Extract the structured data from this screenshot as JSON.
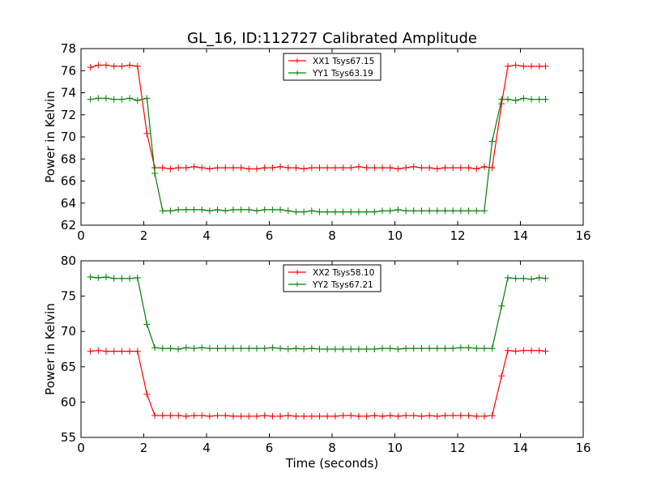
{
  "title": "GL_16, ID:112727 Calibrated Amplitude",
  "colors": {
    "red": "#ff0000",
    "green": "#008000",
    "frame": "#000000"
  },
  "chart_data": [
    {
      "type": "line",
      "title": "GL_16, ID:112727 Calibrated Amplitude",
      "xlabel": "",
      "ylabel": "Power in Kelvin",
      "xlim": [
        0,
        16
      ],
      "ylim": [
        62,
        78
      ],
      "xticks": [
        0,
        2,
        4,
        6,
        8,
        10,
        12,
        14,
        16
      ],
      "yticks": [
        62,
        64,
        66,
        68,
        70,
        72,
        74,
        76,
        78
      ],
      "grid": false,
      "legend_position": "top-center",
      "x": [
        0.3,
        0.55,
        0.8,
        1.05,
        1.3,
        1.55,
        1.8,
        2.1,
        2.35,
        2.6,
        2.85,
        3.1,
        3.35,
        3.6,
        3.85,
        4.1,
        4.35,
        4.6,
        4.85,
        5.1,
        5.35,
        5.6,
        5.85,
        6.1,
        6.35,
        6.6,
        6.85,
        7.1,
        7.35,
        7.6,
        7.85,
        8.1,
        8.35,
        8.6,
        8.85,
        9.1,
        9.35,
        9.6,
        9.85,
        10.1,
        10.35,
        10.6,
        10.85,
        11.1,
        11.35,
        11.6,
        11.85,
        12.1,
        12.35,
        12.6,
        12.85,
        13.1,
        13.4,
        13.6,
        13.85,
        14.1,
        14.35,
        14.6,
        14.8
      ],
      "series": [
        {
          "name": "XX1 Tsys67.15",
          "color": "#ff0000",
          "values": [
            76.3,
            76.5,
            76.5,
            76.4,
            76.4,
            76.5,
            76.4,
            70.3,
            67.2,
            67.2,
            67.1,
            67.2,
            67.2,
            67.3,
            67.2,
            67.1,
            67.2,
            67.2,
            67.2,
            67.2,
            67.1,
            67.1,
            67.2,
            67.2,
            67.3,
            67.2,
            67.2,
            67.1,
            67.2,
            67.2,
            67.2,
            67.2,
            67.2,
            67.2,
            67.3,
            67.2,
            67.2,
            67.2,
            67.2,
            67.1,
            67.2,
            67.3,
            67.2,
            67.2,
            67.1,
            67.2,
            67.2,
            67.2,
            67.2,
            67.1,
            67.3,
            67.2,
            73.0,
            76.4,
            76.5,
            76.4,
            76.4,
            76.4,
            76.4
          ]
        },
        {
          "name": "YY1 Tsys63.19",
          "color": "#008000",
          "values": [
            73.4,
            73.5,
            73.5,
            73.4,
            73.4,
            73.5,
            73.3,
            73.5,
            66.7,
            63.3,
            63.3,
            63.4,
            63.4,
            63.4,
            63.4,
            63.3,
            63.4,
            63.3,
            63.4,
            63.4,
            63.4,
            63.3,
            63.4,
            63.4,
            63.4,
            63.3,
            63.2,
            63.2,
            63.3,
            63.2,
            63.2,
            63.2,
            63.2,
            63.2,
            63.2,
            63.2,
            63.2,
            63.3,
            63.3,
            63.4,
            63.3,
            63.3,
            63.3,
            63.3,
            63.3,
            63.3,
            63.3,
            63.3,
            63.3,
            63.3,
            63.3,
            69.6,
            73.4,
            73.4,
            73.3,
            73.5,
            73.4,
            73.4,
            73.4
          ]
        }
      ]
    },
    {
      "type": "line",
      "title": "",
      "xlabel": "Time (seconds)",
      "ylabel": "Power in Kelvin",
      "xlim": [
        0,
        16
      ],
      "ylim": [
        55,
        80
      ],
      "xticks": [
        0,
        2,
        4,
        6,
        8,
        10,
        12,
        14,
        16
      ],
      "yticks": [
        55,
        60,
        65,
        70,
        75,
        80
      ],
      "grid": false,
      "legend_position": "top-center",
      "x": [
        0.3,
        0.55,
        0.8,
        1.05,
        1.3,
        1.55,
        1.8,
        2.1,
        2.35,
        2.6,
        2.85,
        3.1,
        3.35,
        3.6,
        3.85,
        4.1,
        4.35,
        4.6,
        4.85,
        5.1,
        5.35,
        5.6,
        5.85,
        6.1,
        6.35,
        6.6,
        6.85,
        7.1,
        7.35,
        7.6,
        7.85,
        8.1,
        8.35,
        8.6,
        8.85,
        9.1,
        9.35,
        9.6,
        9.85,
        10.1,
        10.35,
        10.6,
        10.85,
        11.1,
        11.35,
        11.6,
        11.85,
        12.1,
        12.35,
        12.6,
        12.85,
        13.1,
        13.4,
        13.6,
        13.85,
        14.1,
        14.35,
        14.6,
        14.8
      ],
      "series": [
        {
          "name": "XX2 Tsys58.10",
          "color": "#ff0000",
          "values": [
            67.2,
            67.3,
            67.2,
            67.2,
            67.2,
            67.2,
            67.2,
            61.1,
            58.1,
            58.1,
            58.1,
            58.1,
            58.0,
            58.1,
            58.1,
            58.0,
            58.1,
            58.1,
            58.0,
            58.0,
            58.0,
            58.0,
            58.1,
            58.0,
            58.0,
            58.1,
            58.0,
            58.0,
            58.0,
            58.0,
            58.0,
            58.0,
            58.1,
            58.1,
            58.0,
            58.0,
            58.1,
            58.0,
            58.1,
            58.0,
            58.1,
            58.1,
            58.0,
            58.1,
            58.0,
            58.1,
            58.1,
            58.1,
            58.1,
            58.0,
            58.0,
            58.1,
            63.7,
            67.3,
            67.2,
            67.3,
            67.3,
            67.3,
            67.2
          ]
        },
        {
          "name": "YY2 Tsys67.21",
          "color": "#008000",
          "values": [
            77.7,
            77.6,
            77.7,
            77.5,
            77.5,
            77.5,
            77.6,
            71.0,
            67.7,
            67.6,
            67.6,
            67.5,
            67.7,
            67.6,
            67.7,
            67.6,
            67.6,
            67.6,
            67.6,
            67.6,
            67.6,
            67.6,
            67.6,
            67.7,
            67.6,
            67.5,
            67.6,
            67.5,
            67.6,
            67.5,
            67.5,
            67.5,
            67.5,
            67.5,
            67.5,
            67.5,
            67.5,
            67.6,
            67.6,
            67.5,
            67.6,
            67.6,
            67.6,
            67.6,
            67.6,
            67.6,
            67.6,
            67.7,
            67.7,
            67.6,
            67.6,
            67.6,
            73.6,
            77.6,
            77.5,
            77.5,
            77.4,
            77.6,
            77.5
          ]
        }
      ]
    }
  ]
}
